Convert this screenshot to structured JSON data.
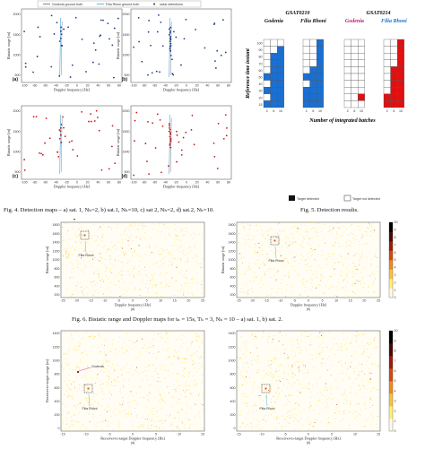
{
  "fig4": {
    "caption": "Fig. 4. Detection maps – a) sat. 1, Nₕ=2, b) sat.1, Nₕ=10, c) sat 2, Nₕ=2, d) sat.2, Nₕ=10.",
    "legend": [
      "Godeoia ground truth",
      "Filia Rhoni ground truth",
      "radar detections"
    ],
    "xlabel": "Doppler frequency [Hz]",
    "ylabel": "Bistatic range [m]",
    "xticks": [
      "-100",
      "-80",
      "-60",
      "-40",
      "-20",
      "0",
      "20",
      "40",
      "60",
      "80"
    ],
    "yticks": [
      "2000",
      "1500",
      "1000",
      "500"
    ],
    "panels": [
      "(a)",
      "(b)",
      "(c)",
      "(d)"
    ],
    "colors": {
      "sat1": "#1f3d8a",
      "sat2": "#c81818",
      "truth_a": "#6b6b6b",
      "truth_b": "#4aa3d8"
    }
  },
  "fig5": {
    "caption": "Fig. 5. Detection results.",
    "groups": [
      {
        "title": "GSAT0210",
        "color": "#1a6fd1",
        "cols": [
          {
            "label": "Godenia",
            "ticks": [
              "2",
              "6",
              "10"
            ]
          },
          {
            "label": "Filia Rhoni",
            "ticks": [
              "2",
              "6",
              "10"
            ]
          }
        ]
      },
      {
        "title": "GSAT0214",
        "color": "#e01010",
        "cols": [
          {
            "label": "Godenia",
            "ticks": [
              "2",
              "6",
              "10"
            ]
          },
          {
            "label": "Filia Rhoni",
            "ticks": [
              "2",
              "6",
              "10"
            ]
          }
        ]
      }
    ],
    "grids": [
      [
        [
          0,
          0,
          0
        ],
        [
          0,
          0,
          1
        ],
        [
          0,
          1,
          1
        ],
        [
          0,
          1,
          1
        ],
        [
          0,
          1,
          1
        ],
        [
          1,
          1,
          1
        ],
        [
          0,
          1,
          1
        ],
        [
          1,
          1,
          1
        ],
        [
          0,
          1,
          1
        ],
        [
          1,
          1,
          1
        ]
      ],
      [
        [
          0,
          0,
          1
        ],
        [
          0,
          0,
          1
        ],
        [
          0,
          0,
          1
        ],
        [
          0,
          0,
          1
        ],
        [
          0,
          1,
          1
        ],
        [
          1,
          1,
          1
        ],
        [
          0,
          1,
          1
        ],
        [
          1,
          1,
          1
        ],
        [
          1,
          1,
          1
        ],
        [
          1,
          1,
          1
        ]
      ],
      [
        [
          0,
          0,
          0
        ],
        [
          0,
          0,
          0
        ],
        [
          0,
          0,
          0
        ],
        [
          0,
          0,
          0
        ],
        [
          0,
          0,
          0
        ],
        [
          0,
          0,
          0
        ],
        [
          0,
          0,
          0
        ],
        [
          0,
          0,
          0
        ],
        [
          0,
          0,
          1
        ],
        [
          0,
          0,
          0
        ]
      ],
      [
        [
          0,
          0,
          1
        ],
        [
          0,
          0,
          1
        ],
        [
          0,
          0,
          1
        ],
        [
          0,
          0,
          1
        ],
        [
          0,
          1,
          1
        ],
        [
          0,
          1,
          1
        ],
        [
          0,
          1,
          1
        ],
        [
          0,
          1,
          1
        ],
        [
          1,
          1,
          1
        ],
        [
          1,
          1,
          1
        ]
      ]
    ],
    "yticks": [
      "100",
      "90",
      "80",
      "70",
      "60",
      "50",
      "40",
      "30",
      "20",
      "15"
    ],
    "ylabel": "Reference time instant",
    "xlabel": "Number of integrated batches",
    "legend_detected": "Target detected",
    "legend_not": "Target not detected"
  },
  "fig6": {
    "caption": "Fig. 6. Bistatic range and Doppler maps for tₙ = 15s, Tₕ = 3, Nₕ = 10 – a) sat. 1, b) sat. 2.",
    "left": {
      "xlabel": "Doppler frequency [Hz]",
      "ylabel": "Bistatic range [m]",
      "xticks": [
        "-25",
        "-20",
        "-15",
        "-10",
        "-5",
        "0",
        "5",
        "10",
        "15",
        "20",
        "25"
      ],
      "yticks": [
        "1800",
        "1600",
        "1400",
        "1200",
        "1000",
        "800",
        "600",
        "400",
        "200"
      ],
      "ann1": "Godenia",
      "ann2": "Filia Rhoni",
      "sub": "(a)"
    },
    "right": {
      "xlabel": "Doppler frequency [Hz]",
      "ylabel": "Bistatic range [m]",
      "xticks": [
        "-25",
        "-20",
        "-15",
        "-10",
        "-5",
        "0",
        "5",
        "10",
        "15",
        "20",
        "25"
      ],
      "yticks": [
        "1800",
        "1600",
        "1400",
        "1200",
        "1000",
        "800",
        "600",
        "400",
        "200"
      ],
      "ann2": "Filia Rhoni",
      "sub": "(b)"
    },
    "colorbar": [
      "10",
      "9",
      "8",
      "7",
      "6",
      "5",
      "4",
      "3",
      "2",
      "1",
      "0"
    ]
  },
  "fig7": {
    "left": {
      "xlabel": "Receiver-to-target Doppler frequency [Hz]",
      "ylabel": "Receiver-to-target range [m]",
      "xticks": [
        "-15",
        "-10",
        "-5",
        "0",
        "5",
        "10",
        "15"
      ],
      "yticks": [
        "1400",
        "1200",
        "1000",
        "800",
        "600",
        "400",
        "200",
        "0"
      ],
      "ann1": "Godenia",
      "ann2": "Filia Rhoni",
      "sub": "(a)"
    },
    "right": {
      "xlabel": "Receiver-to-target Doppler frequency [Hz]",
      "ylabel": "",
      "xticks": [
        "-15",
        "-10",
        "-5",
        "0",
        "5",
        "10",
        "15"
      ],
      "yticks": [
        "1400",
        "1200",
        "1000",
        "800",
        "600",
        "400",
        "200",
        "0"
      ],
      "ann2": "Filia Rhoni",
      "sub": "(b)"
    },
    "colorbar": [
      "10",
      "9",
      "8",
      "7",
      "6",
      "5",
      "4",
      "3",
      "2",
      "1",
      "0"
    ]
  }
}
